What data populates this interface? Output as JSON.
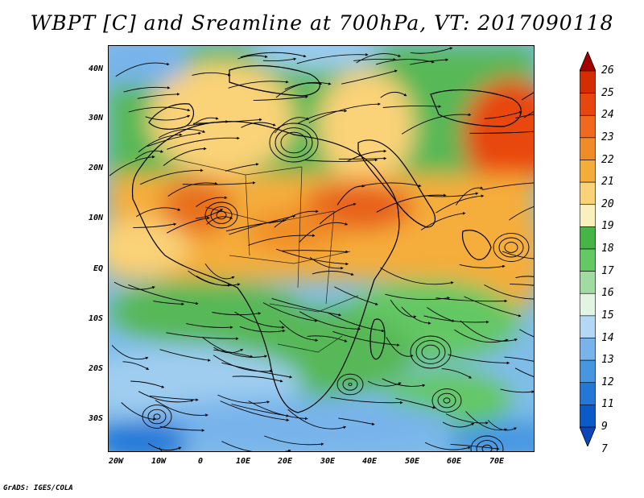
{
  "title": "WBPT [C] and Sreamline at 700hPa, VT: 2017090118",
  "credit": "GrADS: IGES/COLA",
  "map": {
    "lat_labels": [
      "40N",
      "30N",
      "20N",
      "10N",
      "EQ",
      "10S",
      "20S",
      "30S"
    ],
    "lon_labels": [
      "20W",
      "10W",
      "0",
      "10E",
      "20E",
      "30E",
      "40E",
      "50E",
      "60E",
      "70E"
    ]
  },
  "colorbar": {
    "labels": [
      "26",
      "25",
      "24",
      "23",
      "22",
      "21",
      "20",
      "19",
      "18",
      "17",
      "16",
      "15",
      "14",
      "13",
      "12",
      "11",
      "9",
      "7"
    ],
    "colors": [
      "#a50000",
      "#d42d00",
      "#e8460f",
      "#f0691e",
      "#f08c28",
      "#f5ad3a",
      "#fad278",
      "#faf0be",
      "#46b446",
      "#64c864",
      "#a0dca0",
      "#e1f5e1",
      "#b4d7f5",
      "#78b4eb",
      "#4696e1",
      "#2378d7",
      "#0a5ac8",
      "#0a46b9"
    ]
  }
}
